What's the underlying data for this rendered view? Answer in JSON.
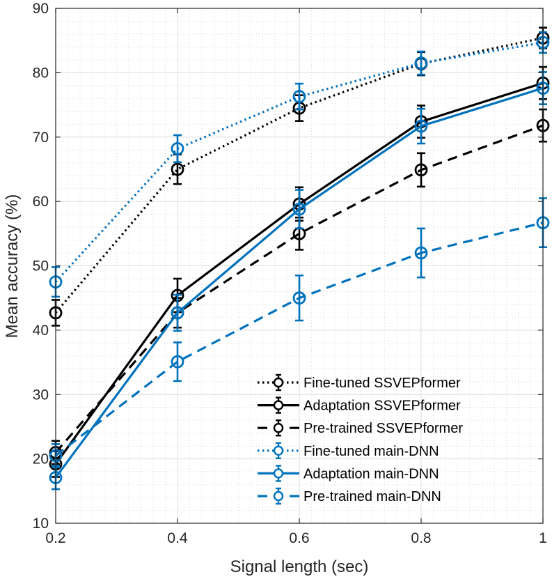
{
  "chart_data": {
    "type": "line",
    "title": "",
    "xlabel": "Signal length (sec)",
    "ylabel": "Mean accuracy (%)",
    "x": [
      0.2,
      0.4,
      0.6,
      0.8,
      1
    ],
    "xticks": [
      "0.2",
      "0.4",
      "0.6",
      "0.8",
      "1"
    ],
    "xlim": [
      0.2,
      1
    ],
    "ylim": [
      10,
      90
    ],
    "yticks": [
      "10",
      "20",
      "30",
      "40",
      "50",
      "60",
      "70",
      "80",
      "90"
    ],
    "grid": "major and minor",
    "legend_position": "bottom-right",
    "series": [
      {
        "name": "Fine-tuned SSVEPformer",
        "color": "#000000",
        "dash": "dotted",
        "values": [
          42.7,
          65.0,
          74.5,
          81.4,
          85.4
        ],
        "errors": [
          2.0,
          2.3,
          2.0,
          1.8,
          1.6
        ]
      },
      {
        "name": "Adaptation SSVEPformer",
        "color": "#000000",
        "dash": "solid",
        "values": [
          19.2,
          45.4,
          59.6,
          72.4,
          78.4
        ],
        "errors": [
          2.0,
          2.6,
          2.6,
          2.5,
          2.5
        ]
      },
      {
        "name": "Pre-trained SSVEPformer",
        "color": "#000000",
        "dash": "dashed",
        "values": [
          21.0,
          42.7,
          55.0,
          64.9,
          71.8
        ],
        "errors": [
          1.8,
          2.3,
          2.5,
          2.6,
          2.5
        ]
      },
      {
        "name": "Fine-tuned main-DNN",
        "color": "#0072BD",
        "dash": "dotted",
        "values": [
          47.5,
          68.2,
          76.3,
          81.5,
          84.7
        ],
        "errors": [
          2.3,
          2.1,
          2.0,
          1.8,
          1.6
        ]
      },
      {
        "name": "Adaptation main-DNN",
        "color": "#0072BD",
        "dash": "solid",
        "values": [
          17.1,
          42.7,
          58.8,
          71.7,
          77.6
        ],
        "errors": [
          1.8,
          2.8,
          3.0,
          2.7,
          2.5
        ]
      },
      {
        "name": "Pre-trained main-DNN",
        "color": "#0072BD",
        "dash": "dashed",
        "values": [
          20.5,
          35.1,
          45.0,
          52.0,
          56.7
        ],
        "errors": [
          1.8,
          3.0,
          3.5,
          3.8,
          3.8
        ]
      }
    ]
  }
}
